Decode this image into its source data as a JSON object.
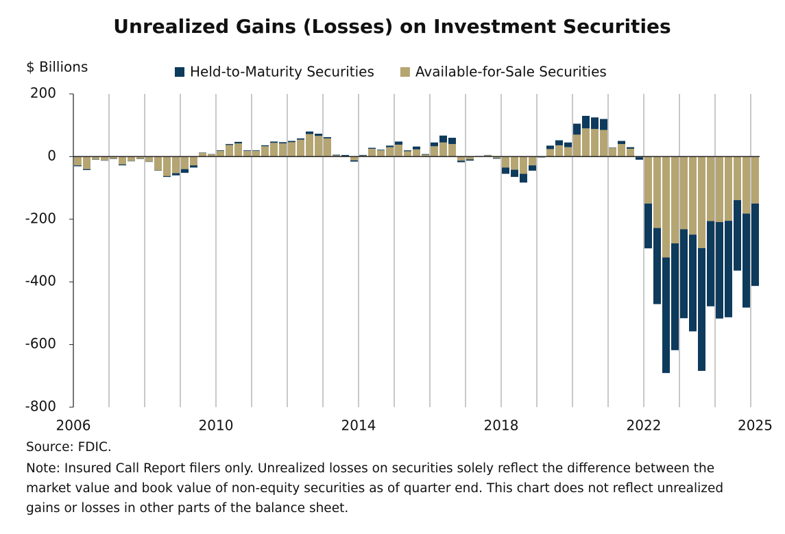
{
  "chart_data": {
    "type": "stacked_bar",
    "title": "Unrealized Gains (Losses) on Investment Securities",
    "y_axis_label": "$ Billions",
    "categories": [
      "2006",
      null,
      null,
      null,
      null,
      null,
      null,
      null,
      null,
      null,
      null,
      null,
      null,
      null,
      null,
      null,
      "2010",
      null,
      null,
      null,
      null,
      null,
      null,
      null,
      null,
      null,
      null,
      null,
      null,
      null,
      null,
      null,
      "2014",
      null,
      null,
      null,
      null,
      null,
      null,
      null,
      null,
      null,
      null,
      null,
      null,
      null,
      null,
      null,
      "2018",
      null,
      null,
      null,
      null,
      null,
      null,
      null,
      null,
      null,
      null,
      null,
      null,
      null,
      null,
      null,
      "2022",
      null,
      null,
      null,
      null,
      null,
      null,
      null,
      null,
      null,
      null,
      null,
      "2025"
    ],
    "series": [
      {
        "name": "Held-to-Maturity Securities",
        "color": "#0e3a5c",
        "values": [
          -3,
          -3,
          -1,
          -1,
          -1,
          -3,
          -1,
          -1,
          -1,
          -1,
          -3,
          -7,
          -12,
          -7,
          1,
          1,
          2,
          3,
          5,
          2,
          2,
          3,
          4,
          4,
          4,
          4,
          8,
          7,
          4,
          2,
          3,
          -4,
          2,
          3,
          2,
          5,
          10,
          3,
          9,
          2,
          12,
          22,
          20,
          -5,
          -4,
          1,
          1,
          -2,
          -20,
          -23,
          -28,
          -17,
          -1,
          11,
          16,
          15,
          35,
          40,
          37,
          35,
          1,
          10,
          5,
          -8,
          -143,
          -243,
          -369,
          -341,
          -284,
          -309,
          -392,
          -272,
          -308,
          -308,
          -225,
          -300,
          -263
        ]
      },
      {
        "name": "Available-for-Sale Securities",
        "color": "#b5a572",
        "values": [
          -28,
          -40,
          -9,
          -12,
          -7,
          -25,
          -14,
          -7,
          -16,
          -44,
          -62,
          -53,
          -40,
          -28,
          12,
          7,
          18,
          37,
          42,
          18,
          18,
          33,
          44,
          42,
          46,
          54,
          72,
          66,
          58,
          4,
          2,
          -12,
          3,
          25,
          20,
          30,
          38,
          17,
          23,
          6,
          33,
          45,
          40,
          -13,
          -9,
          1,
          4,
          -5,
          -35,
          -42,
          -55,
          -28,
          -2,
          24,
          36,
          30,
          70,
          90,
          88,
          85,
          28,
          40,
          25,
          -2,
          -150,
          -228,
          -322,
          -277,
          -232,
          -249,
          -292,
          -206,
          -209,
          -205,
          -139,
          -182,
          -150
        ]
      }
    ],
    "stack_order": [
      1,
      0
    ],
    "ylim": [
      -800,
      200
    ],
    "yticks": [
      200,
      0,
      -200,
      -400,
      -600,
      -800
    ],
    "grid": true,
    "source": "Source: FDIC.",
    "note": [
      "Note: Insured Call Report filers only. Unrealized losses on securities solely reflect the difference between the",
      "market value and book value of non-equity securities as of quarter end. This chart does not reflect unrealized",
      "gains or losses in other parts of the balance sheet."
    ]
  }
}
